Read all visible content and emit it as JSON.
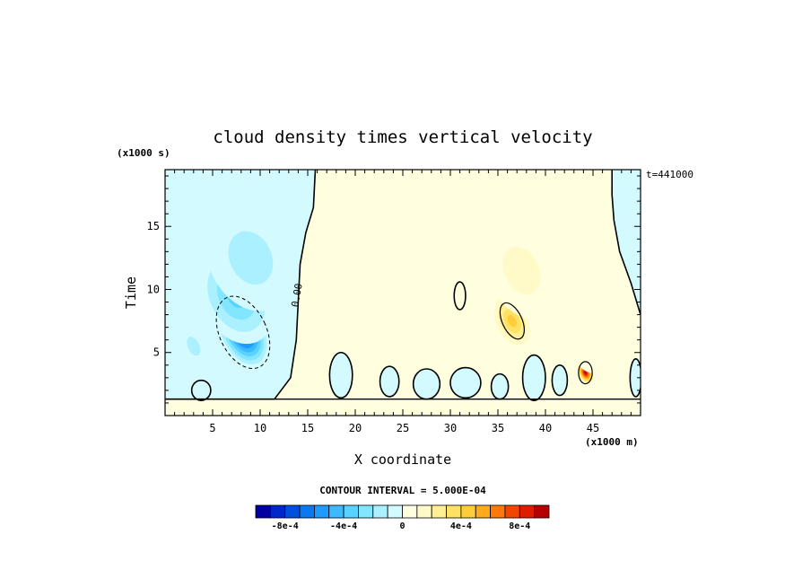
{
  "chart_data": {
    "type": "heatmap",
    "title": "cloud density times vertical velocity",
    "xlabel": "X coordinate",
    "ylabel": "Time",
    "x_unit": "(x1000 m)",
    "y_unit": "(x1000 s)",
    "time_stamp": "t=441000",
    "xlim": [
      0,
      50
    ],
    "ylim": [
      0,
      19.5
    ],
    "x_ticks": [
      5,
      10,
      15,
      20,
      25,
      30,
      35,
      40,
      45
    ],
    "y_ticks": [
      5,
      10,
      15
    ],
    "contour_label": "0.00",
    "contour_interval_text": "CONTOUR INTERVAL = 5.000E-04",
    "colorbar": {
      "levels": [
        -0.001,
        -0.0009,
        -0.0008,
        -0.0007,
        -0.0006,
        -0.0005,
        -0.0004,
        -0.0003,
        -0.0002,
        -0.0001,
        0,
        0.0001,
        0.0002,
        0.0003,
        0.0004,
        0.0005,
        0.0006,
        0.0007,
        0.0008,
        0.0009,
        0.001
      ],
      "colors": [
        "#0000a0",
        "#0028c8",
        "#0050dc",
        "#0a78f0",
        "#1e9bff",
        "#3cb9ff",
        "#5ad2ff",
        "#82e6ff",
        "#aaf0ff",
        "#d2faff",
        "#ffffe0",
        "#fffac8",
        "#fff096",
        "#ffe164",
        "#ffcd3c",
        "#ffaa1e",
        "#ff780a",
        "#f04600",
        "#dc1e00",
        "#b40000"
      ],
      "tick_labels": [
        {
          "value": -0.0008,
          "text": "-8e-4"
        },
        {
          "value": -0.0004,
          "text": "-4e-4"
        },
        {
          "value": 0,
          "text": "0"
        },
        {
          "value": 0.0004,
          "text": "4e-4"
        },
        {
          "value": 0.0008,
          "text": "8e-4"
        }
      ]
    },
    "features": [
      {
        "x": 8.2,
        "y": 6.6,
        "sx": 2.6,
        "sy": 3.2,
        "value": -0.00085
      },
      {
        "x": 7.5,
        "y": 9.5,
        "sx": 4.2,
        "sy": 4.5,
        "value": -0.00035
      },
      {
        "x": 9.0,
        "y": 12.5,
        "sx": 5.5,
        "sy": 5.5,
        "value": -0.0002
      },
      {
        "x": 3.0,
        "y": 5.5,
        "sx": 1.5,
        "sy": 2.0,
        "value": -0.0002
      },
      {
        "x": 36.5,
        "y": 7.5,
        "sx": 2.3,
        "sy": 2.8,
        "value": 0.00045
      },
      {
        "x": 37.5,
        "y": 11.5,
        "sx": 4.5,
        "sy": 5.0,
        "value": 0.0002
      },
      {
        "x": 44.2,
        "y": 3.4,
        "sx": 0.9,
        "sy": 1.1,
        "value": 0.00095
      },
      {
        "x": 45.0,
        "y": 5.0,
        "sx": 3.0,
        "sy": 2.5,
        "value": 0.00015
      },
      {
        "x": 22.0,
        "y": 7.5,
        "sx": 6.0,
        "sy": 3.0,
        "value": 0.00012
      }
    ]
  }
}
